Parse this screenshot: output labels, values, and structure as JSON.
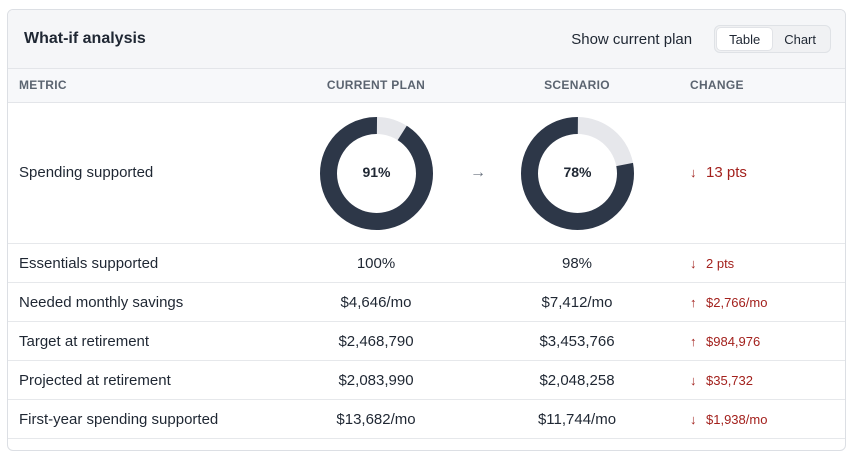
{
  "header": {
    "title": "What-if analysis",
    "show_current_plan": "Show current plan",
    "view_toggle": [
      "Table",
      "Chart"
    ]
  },
  "columns": {
    "metric": "METRIC",
    "current": "CURRENT PLAN",
    "scenario": "SCENARIO",
    "change": "CHANGE"
  },
  "spending": {
    "label": "Spending supported",
    "current_label": "91%",
    "current_value": 91,
    "scenario_label": "78%",
    "scenario_value": 78,
    "change": "13 pts",
    "change_dir": "down"
  },
  "rows": [
    {
      "metric": "Essentials supported",
      "current": "100%",
      "scenario": "98%",
      "change": "2 pts",
      "dir": "down"
    },
    {
      "metric": "Needed monthly savings",
      "current": "$4,646/mo",
      "scenario": "$7,412/mo",
      "change": "$2,766/mo",
      "dir": "up"
    },
    {
      "metric": "Target at retirement",
      "current": "$2,468,790",
      "scenario": "$3,453,766",
      "change": "$984,976",
      "dir": "up"
    },
    {
      "metric": "Projected at retirement",
      "current": "$2,083,990",
      "scenario": "$2,048,258",
      "change": "$35,732",
      "dir": "down"
    },
    {
      "metric": "First-year spending supported",
      "current": "$13,682/mo",
      "scenario": "$11,744/mo",
      "change": "$1,938/mo",
      "dir": "down"
    }
  ],
  "colors": {
    "donut_fill": "#2d3748",
    "donut_track": "#e6e7eb",
    "change_negative": "#a3211d"
  },
  "icons": {
    "down": "arrow-down-icon",
    "up": "arrow-up-icon",
    "between": "arrow-right-icon"
  }
}
